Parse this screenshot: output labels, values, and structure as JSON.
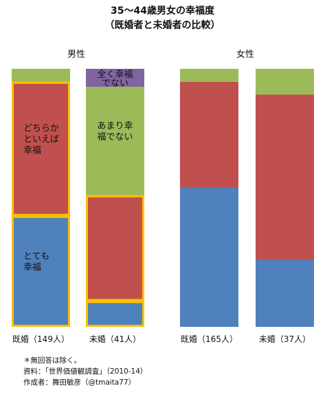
{
  "title_line1": "35～44歳男女の幸福度",
  "title_line2": "（既婚者と未婚者の比較）",
  "groups": {
    "male": "男性",
    "female": "女性"
  },
  "chart_data": {
    "type": "bar",
    "stacked": true,
    "normalized": true,
    "ylim": [
      0,
      100
    ],
    "categories": [
      "既婚（149人）",
      "未婚（41人）",
      "既婚（165人）",
      "未婚（37人）"
    ],
    "category_groups": [
      "男性",
      "男性",
      "女性",
      "女性"
    ],
    "series": [
      {
        "name": "とても幸福",
        "color": "#4f81bd",
        "values": [
          43,
          10,
          54,
          26
        ]
      },
      {
        "name": "どちらかといえば幸福",
        "color": "#c0504d",
        "values": [
          52,
          41,
          41,
          64
        ]
      },
      {
        "name": "あまり幸福でない",
        "color": "#9bbb59",
        "values": [
          5,
          42,
          5,
          10
        ]
      },
      {
        "name": "全く幸福でない",
        "color": "#8064a2",
        "values": [
          0,
          7,
          0,
          0
        ]
      }
    ],
    "segment_labels": [
      {
        "bar": 0,
        "series": 0,
        "lines": [
          "とても",
          "幸福"
        ]
      },
      {
        "bar": 0,
        "series": 1,
        "lines": [
          "どちらか",
          "といえば",
          "幸福"
        ]
      },
      {
        "bar": 1,
        "series": 2,
        "lines": [
          "あまり幸",
          "福でない"
        ]
      },
      {
        "bar": 1,
        "series": 3,
        "lines": [
          "全く幸福",
          "でない"
        ]
      }
    ],
    "highlights": [
      {
        "bar": 0,
        "series": 0,
        "color": "#ffc000"
      },
      {
        "bar": 0,
        "series": 1,
        "color": "#ffc000"
      },
      {
        "bar": 1,
        "series": 0,
        "color": "#ffc000"
      },
      {
        "bar": 1,
        "series": 1,
        "color": "#ffc000"
      }
    ]
  },
  "notes": [
    "＊無回答は除く。",
    "資料：「世界価値観調査」（2010-14）",
    "作成者：舞田敏彦（@tmaita77）"
  ]
}
